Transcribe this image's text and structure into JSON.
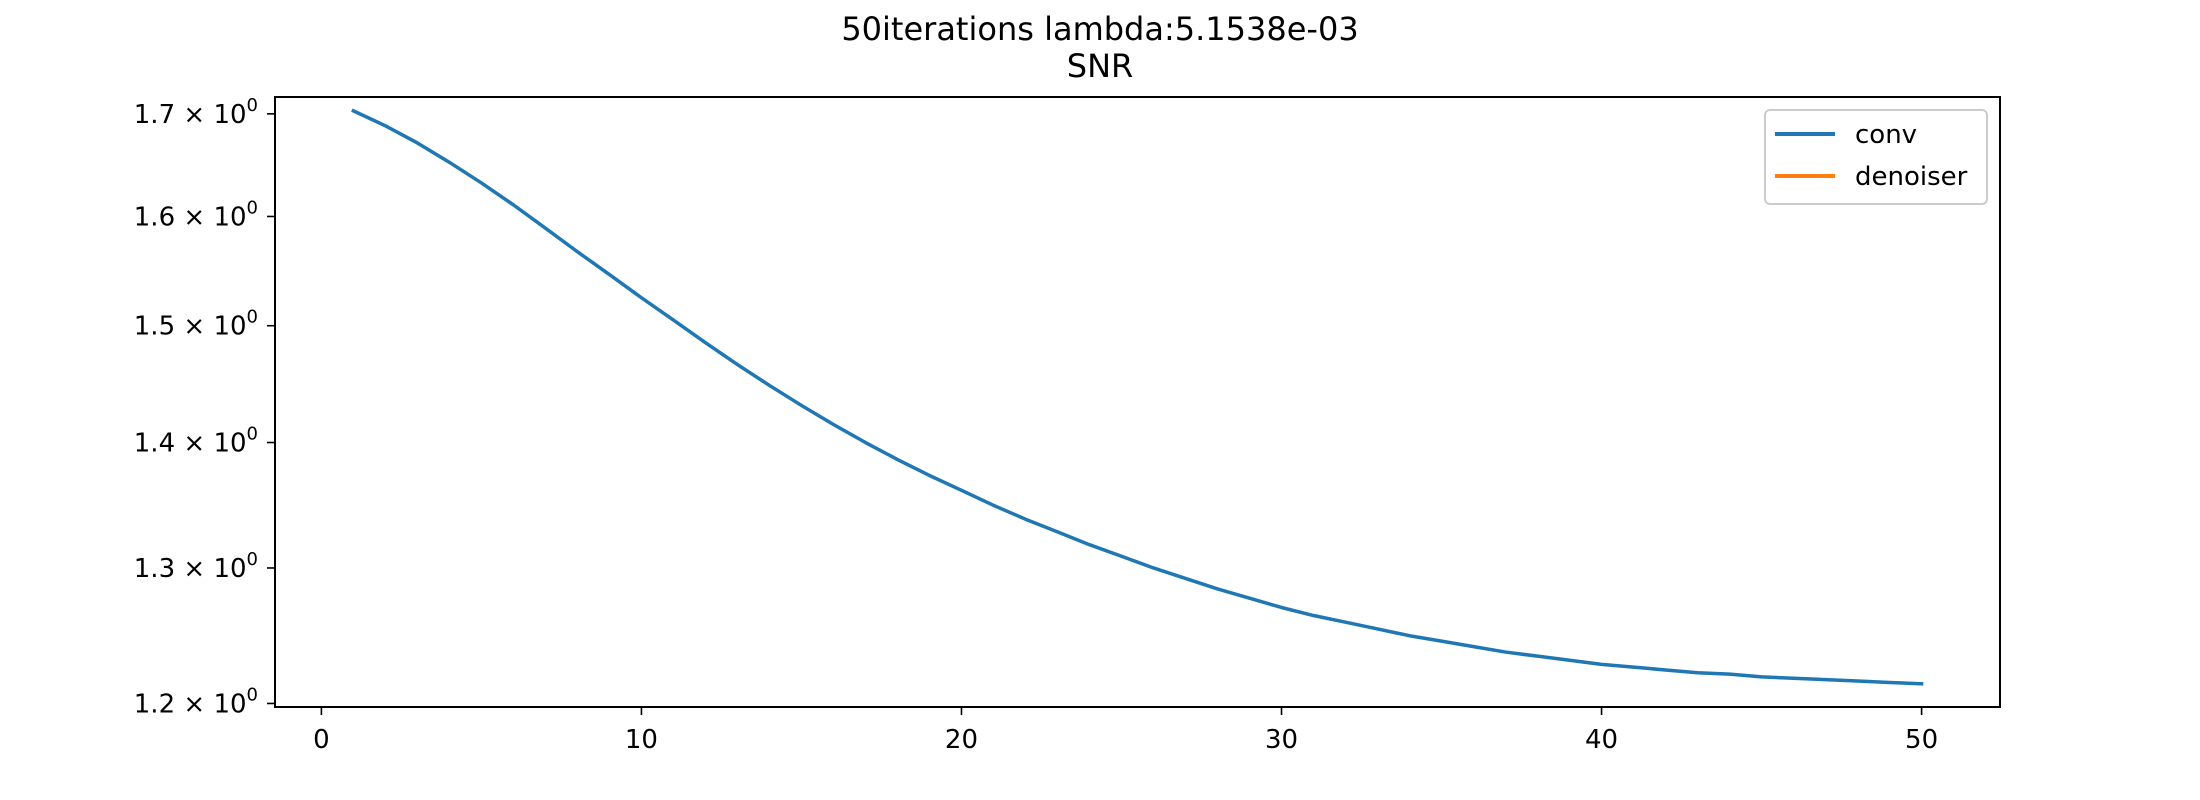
{
  "chart_data": {
    "type": "line",
    "title": "50iterations lambda:5.1538e-03",
    "subtitle": "SNR",
    "xlabel": "",
    "ylabel": "",
    "yscale": "log",
    "xlim": [
      -1.45,
      52.45
    ],
    "ylim": [
      1.1975,
      1.717
    ],
    "x_ticks": [
      0,
      10,
      20,
      30,
      40,
      50
    ],
    "x_tick_labels": [
      "0",
      "10",
      "20",
      "30",
      "40",
      "50"
    ],
    "y_ticks": [
      1.2,
      1.3,
      1.4,
      1.5,
      1.6,
      1.7
    ],
    "y_tick_mantissas": [
      "1.2",
      "1.3",
      "1.4",
      "1.5",
      "1.6",
      "1.7"
    ],
    "y_tick_base": "10",
    "y_tick_exponent": "0",
    "grid": false,
    "legend": "top-right",
    "series": [
      {
        "name": "conv",
        "color": "#1f77b4",
        "x": [
          1,
          2,
          3,
          4,
          5,
          6,
          7,
          8,
          9,
          10,
          11,
          12,
          13,
          14,
          15,
          16,
          17,
          18,
          19,
          20,
          21,
          22,
          23,
          24,
          25,
          26,
          27,
          28,
          29,
          30,
          31,
          32,
          33,
          34,
          35,
          36,
          37,
          38,
          39,
          40,
          41,
          42,
          43,
          44,
          45,
          46,
          47,
          48,
          49,
          50
        ],
        "values": [
          1.703,
          1.688,
          1.671,
          1.652,
          1.632,
          1.611,
          1.589,
          1.567,
          1.546,
          1.525,
          1.505,
          1.485,
          1.466,
          1.448,
          1.431,
          1.415,
          1.4,
          1.386,
          1.373,
          1.361,
          1.349,
          1.338,
          1.328,
          1.318,
          1.309,
          1.3,
          1.292,
          1.284,
          1.277,
          1.27,
          1.264,
          1.259,
          1.254,
          1.249,
          1.245,
          1.241,
          1.237,
          1.234,
          1.231,
          1.228,
          1.226,
          1.224,
          1.222,
          1.221,
          1.219,
          1.218,
          1.217,
          1.216,
          1.215,
          1.214
        ]
      },
      {
        "name": "denoiser",
        "color": "#ff7f0e",
        "x": [],
        "values": []
      }
    ]
  }
}
